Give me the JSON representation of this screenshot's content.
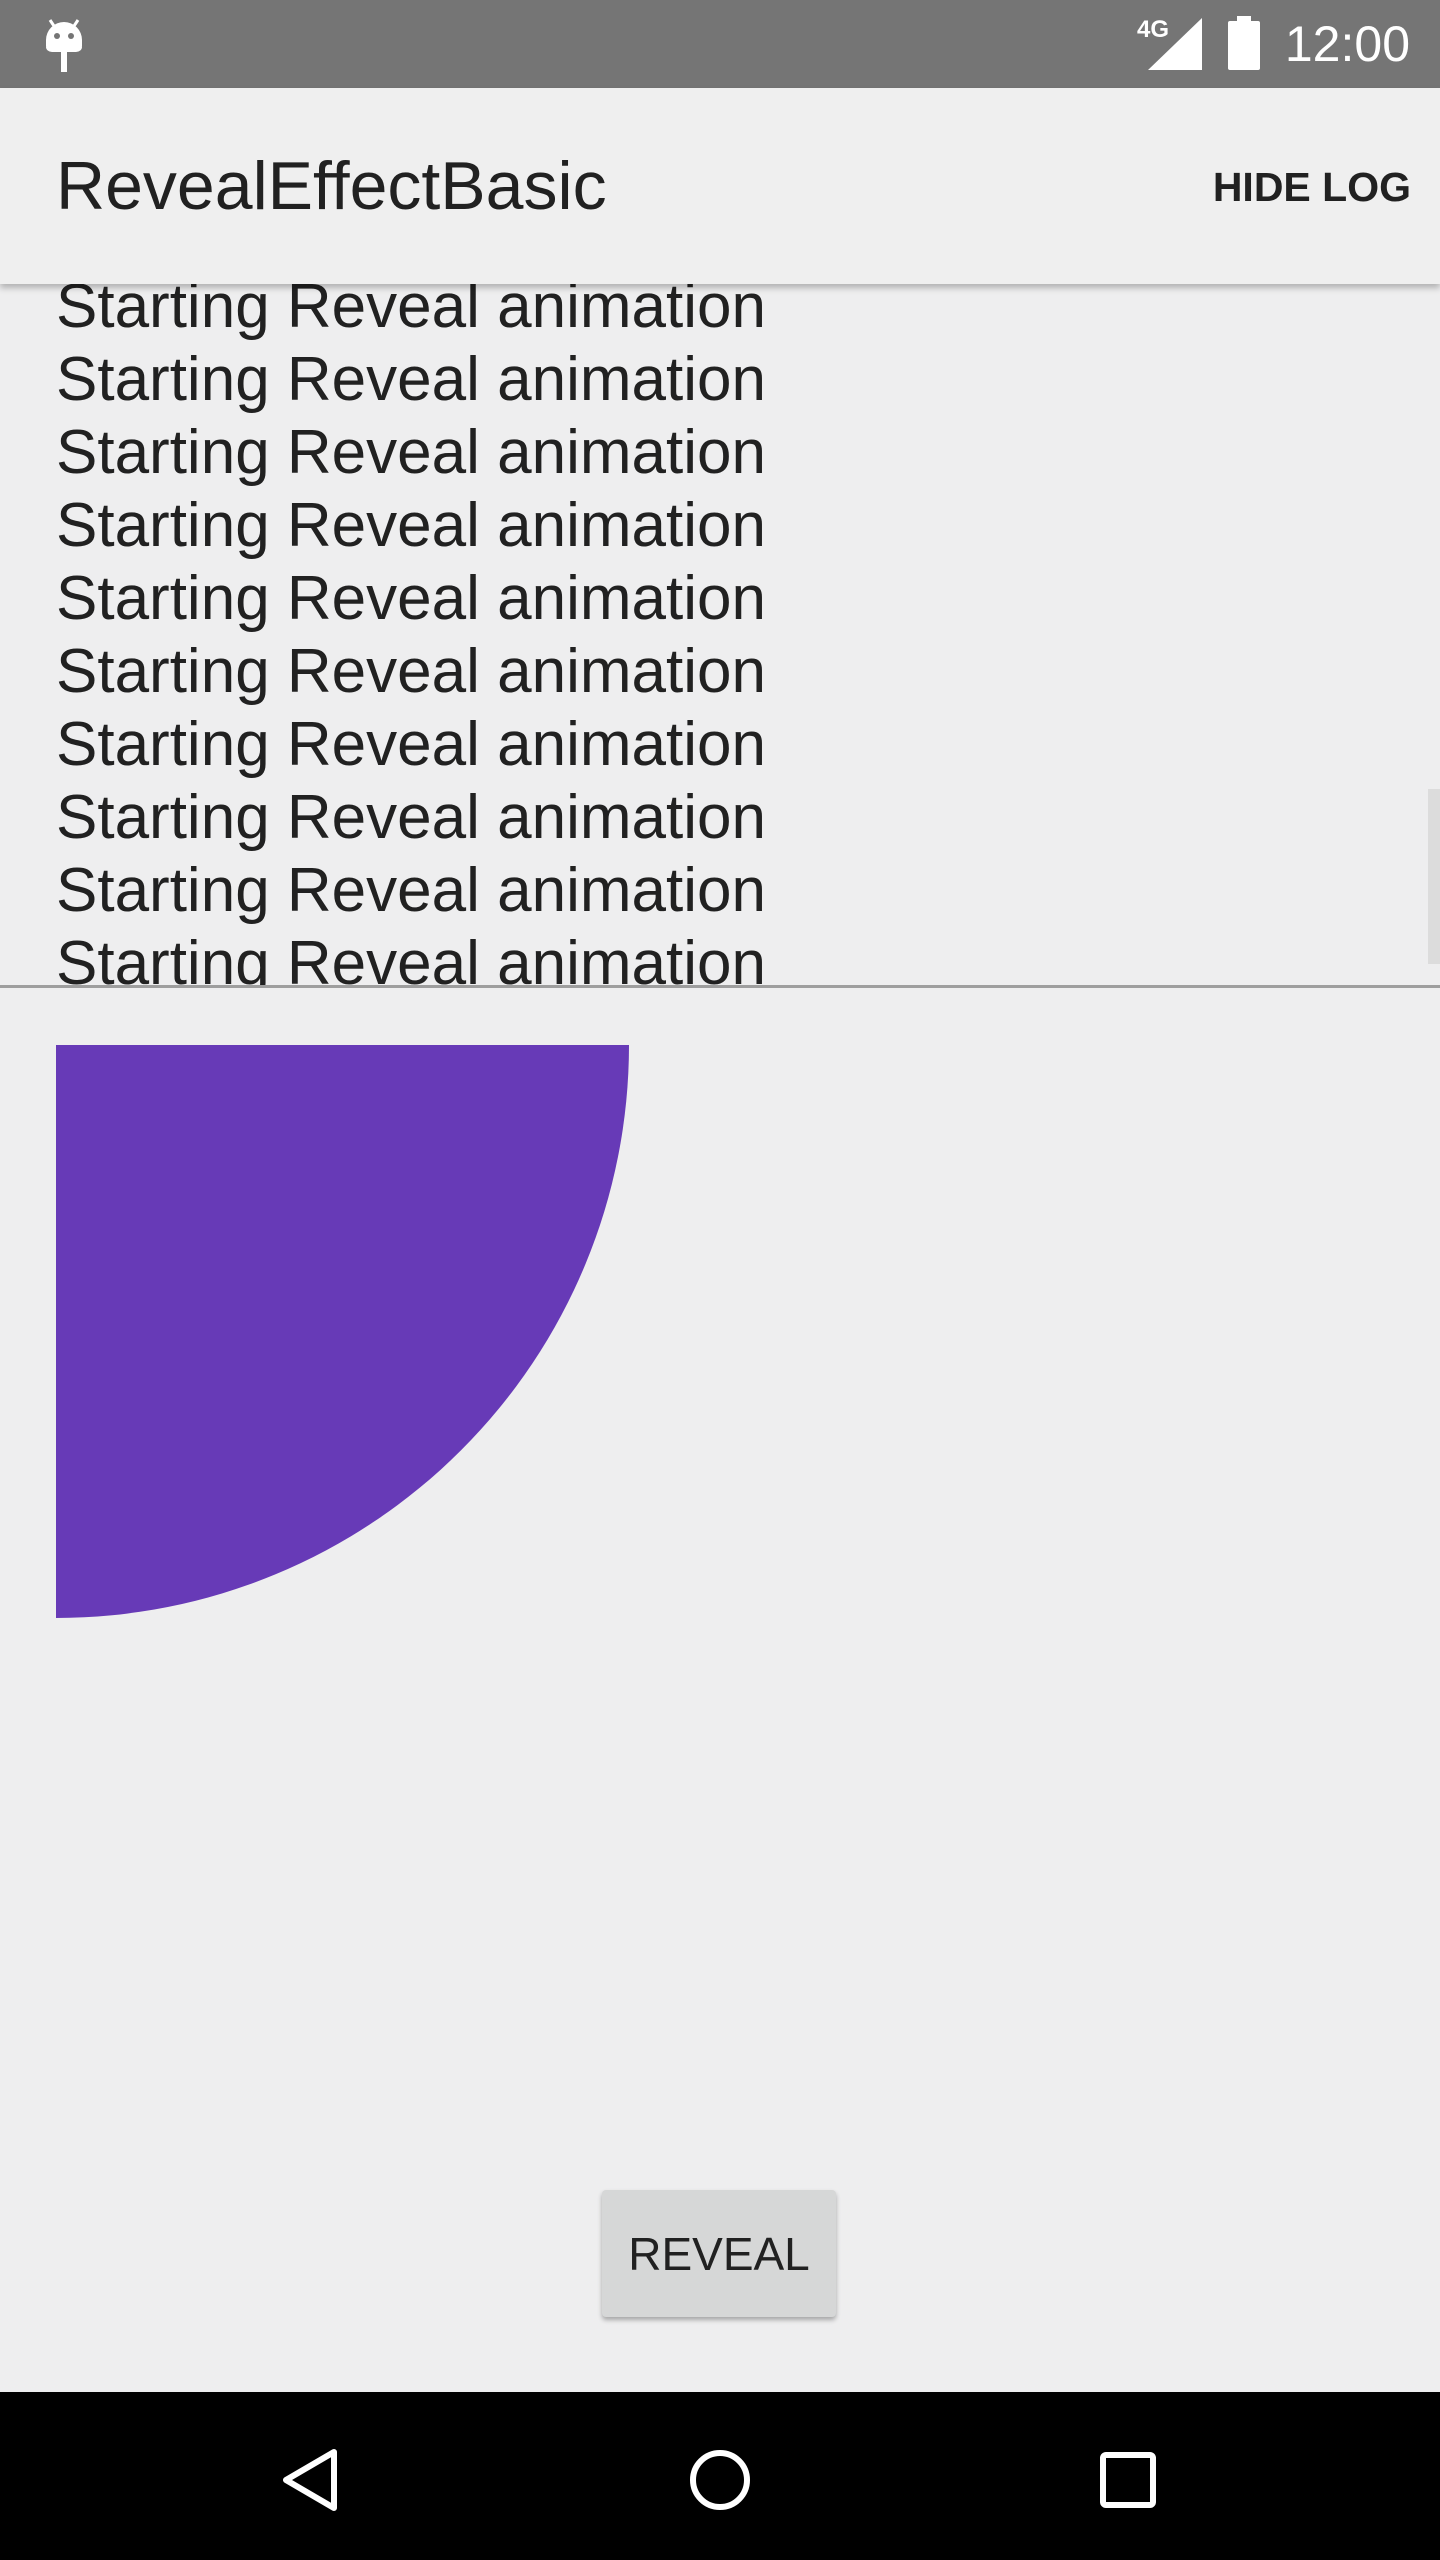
{
  "status_bar": {
    "network": "4G",
    "time": "12:00"
  },
  "app_bar": {
    "title": "RevealEffectBasic",
    "action": "HIDE LOG"
  },
  "log": {
    "lines": [
      "Starting Reveal animation",
      "Starting Reveal animation",
      "Starting Reveal animation",
      "Starting Reveal animation",
      "Starting Reveal animation",
      "Starting Reveal animation",
      "Starting Reveal animation",
      "Starting Reveal animation",
      "Starting Reveal animation",
      "Starting Reveal animation"
    ]
  },
  "button": {
    "label": "REVEAL"
  }
}
